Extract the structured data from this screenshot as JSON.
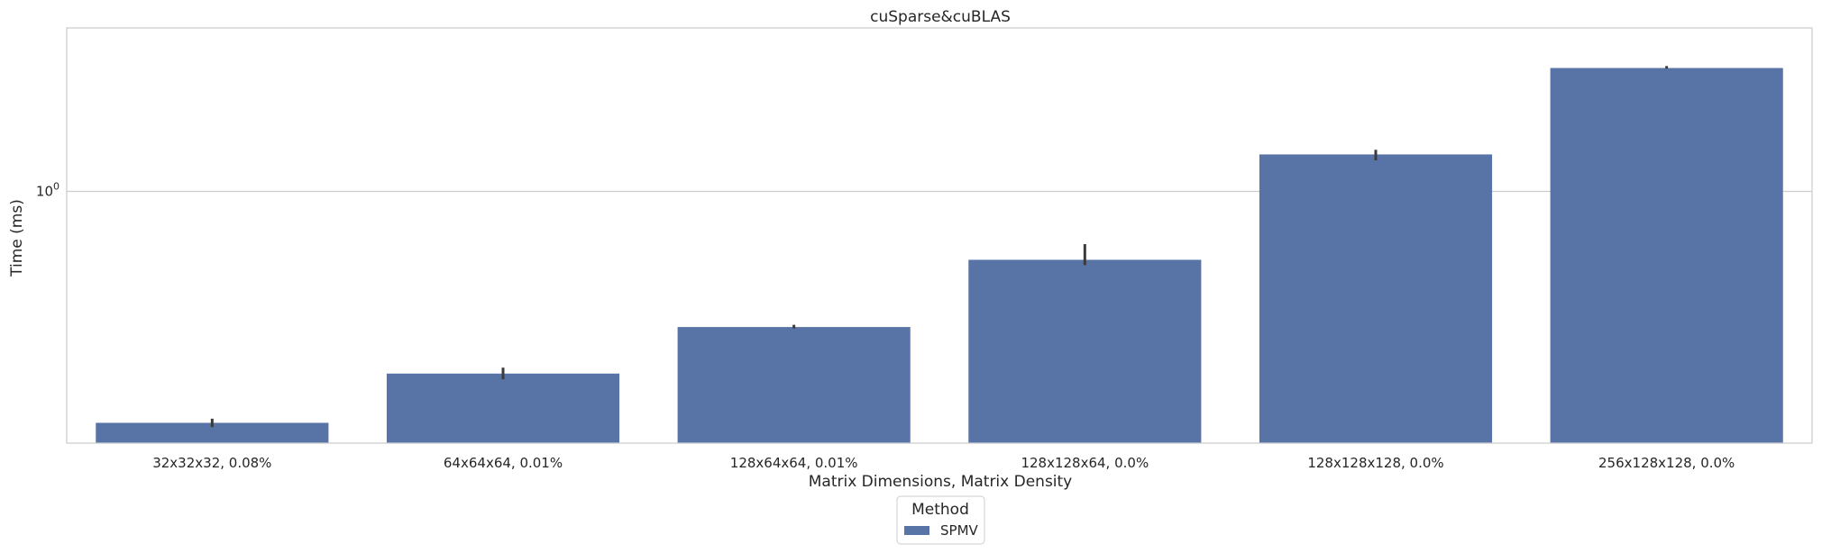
{
  "chart_data": {
    "type": "bar",
    "title": "cuSparse&cuBLAS",
    "xlabel": "Matrix Dimensions, Matrix Density",
    "ylabel": "Time (ms)",
    "yscale": "log",
    "ylim": [
      0.186,
      2.98
    ],
    "yticks": [
      {
        "value": 1.0,
        "label": "10",
        "exponent": "0"
      }
    ],
    "grid": "horizontal",
    "legend": {
      "title": "Method",
      "placement": "bottom-center"
    },
    "categories": [
      "32x32x32, 0.08%",
      "64x64x64, 0.01%",
      "128x64x64, 0.01%",
      "128x128x64, 0.0%",
      "128x128x128, 0.0%",
      "256x128x128, 0.0%"
    ],
    "series": [
      {
        "name": "SPMV",
        "color": "#5874a6",
        "values": [
          0.213,
          0.296,
          0.404,
          0.633,
          1.28,
          2.28
        ],
        "error_low": [
          0.207,
          0.285,
          0.4,
          0.611,
          1.23,
          2.27
        ],
        "error_high": [
          0.219,
          0.308,
          0.41,
          0.703,
          1.32,
          2.31
        ]
      }
    ]
  }
}
